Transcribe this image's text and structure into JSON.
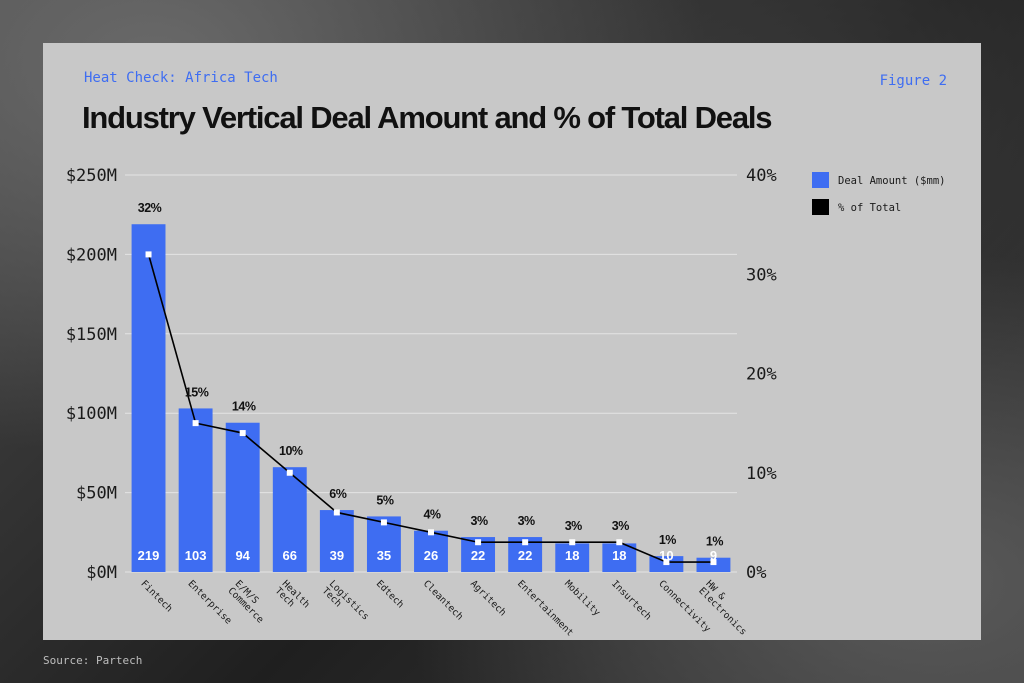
{
  "header": {
    "kicker": "Heat Check: Africa Tech",
    "figure_label": "Figure 2",
    "title": "Industry Vertical Deal Amount and % of Total Deals"
  },
  "footer": {
    "source": "Source: Partech"
  },
  "colors": {
    "bar": "#3e6df2",
    "line": "#000000",
    "card": "#c8c8c8",
    "accent_text": "#3e6df2"
  },
  "chart_data": {
    "type": "bar",
    "title": "Industry Vertical Deal Amount and % of Total Deals",
    "categories": [
      [
        "Fintech"
      ],
      [
        "Enterprise"
      ],
      [
        "E/M/S",
        "Commerce"
      ],
      [
        "Health",
        "Tech"
      ],
      [
        "Logistics",
        "Tech"
      ],
      [
        "Edtech"
      ],
      [
        "Cleantech"
      ],
      [
        "Agritech"
      ],
      [
        "Entertainment"
      ],
      [
        "Mobility"
      ],
      [
        "Insurtech"
      ],
      [
        "Connectivity"
      ],
      [
        "HW &",
        "Electronics"
      ]
    ],
    "series": [
      {
        "name": "Deal Amount ($mm)",
        "type": "bar",
        "axis": "left",
        "values": [
          219,
          103,
          94,
          66,
          39,
          35,
          26,
          22,
          22,
          18,
          18,
          10,
          9
        ]
      },
      {
        "name": "% of Total",
        "type": "line",
        "axis": "right",
        "values": [
          32,
          15,
          14,
          10,
          6,
          5,
          4,
          3,
          3,
          3,
          3,
          1,
          1
        ]
      }
    ],
    "y_left": {
      "ticks": [
        "$0M",
        "$50M",
        "$100M",
        "$150M",
        "$200M",
        "$250M"
      ],
      "range": [
        0,
        250
      ]
    },
    "y_right": {
      "ticks": [
        "0%",
        "10%",
        "20%",
        "30%",
        "40%"
      ],
      "range": [
        0,
        40
      ]
    },
    "grid": true,
    "legend_position": "top-right"
  }
}
